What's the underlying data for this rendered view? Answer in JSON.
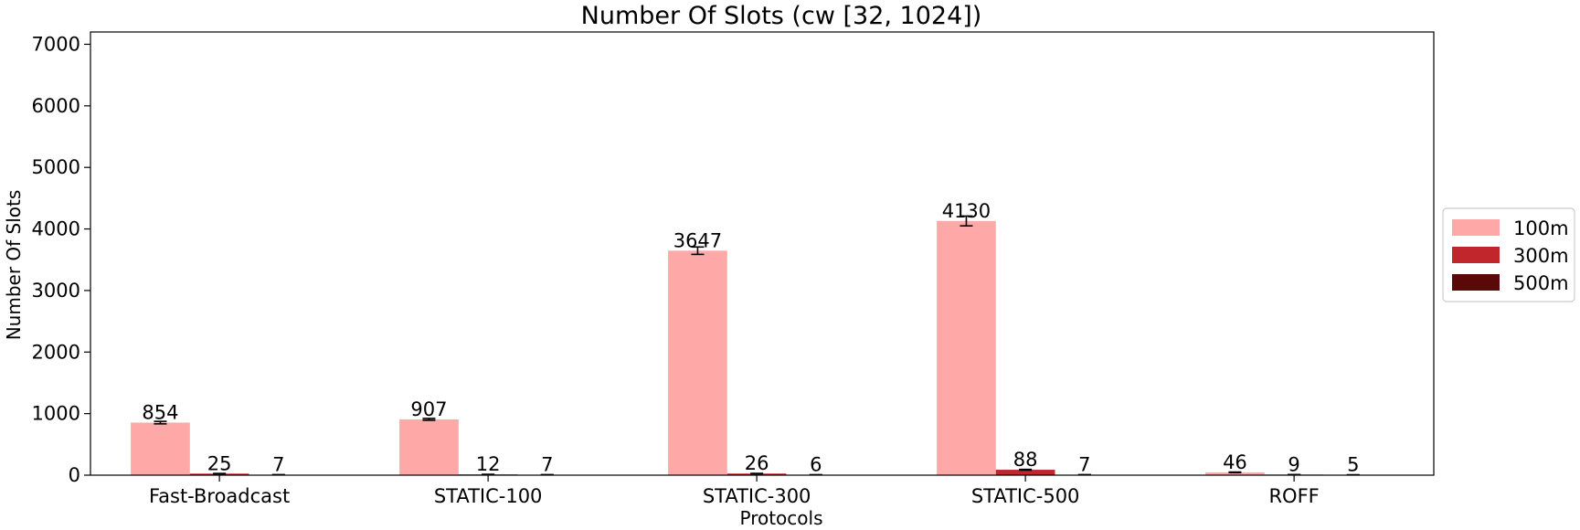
{
  "chart_data": {
    "type": "bar",
    "title": "Number Of Slots (cw [32, 1024])",
    "xlabel": "Protocols",
    "ylabel": "Number Of Slots",
    "ylim": [
      0,
      7200
    ],
    "yticks": [
      0,
      1000,
      2000,
      3000,
      4000,
      5000,
      6000,
      7000
    ],
    "grid": false,
    "legend_position": "outside-right",
    "categories": [
      "Fast-Broadcast",
      "STATIC-100",
      "STATIC-300",
      "STATIC-500",
      "ROFF"
    ],
    "series": [
      {
        "name": "100m",
        "color": "#ffa8a8",
        "values": [
          854,
          907,
          3647,
          4130,
          46
        ],
        "errors": [
          20,
          15,
          60,
          80,
          5
        ]
      },
      {
        "name": "300m",
        "color": "#c0262b",
        "values": [
          25,
          12,
          26,
          88,
          9
        ],
        "errors": [
          3,
          2,
          3,
          6,
          1
        ]
      },
      {
        "name": "500m",
        "color": "#5a0808",
        "values": [
          7,
          7,
          6,
          7,
          5
        ],
        "errors": [
          1,
          1,
          1,
          1,
          1
        ]
      }
    ],
    "data_labels": [
      [
        "854",
        "907",
        "3647",
        "4130",
        "46"
      ],
      [
        "25",
        "12",
        "26",
        "88",
        "9"
      ],
      [
        "7",
        "7",
        "6",
        "7",
        "5"
      ]
    ]
  }
}
